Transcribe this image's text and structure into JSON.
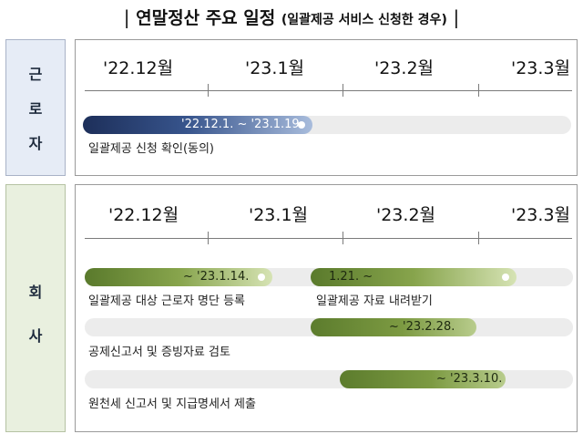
{
  "title": {
    "bar_left": "|",
    "main": "연말정산 주요 일정",
    "sub": "(일괄제공 서비스 신청한 경우)",
    "bar_right": "|"
  },
  "months": [
    "'22.12월",
    "'23.1월",
    "'23.2월",
    "'23.3월"
  ],
  "groups": {
    "worker": {
      "chars": [
        "근",
        "로",
        "자"
      ],
      "items": [
        {
          "range": "'22.12.1. ~ '23.1.19.",
          "label": "일괄제공 신청 확인(동의)"
        }
      ]
    },
    "company": {
      "chars": [
        "회",
        "사"
      ],
      "items": [
        {
          "range": "~ '23.1.14.",
          "label": "일괄제공 대상 근로자 명단 등록"
        },
        {
          "range": "1.21. ~",
          "label": "일괄제공 자료 내려받기"
        },
        {
          "range": "~ '23.2.28.",
          "label": "공제신고서 및 증빙자료 검토"
        },
        {
          "range": "~ '23.3.10.",
          "label": "원천세 신고서 및 지급명세서 제출"
        }
      ]
    }
  }
}
